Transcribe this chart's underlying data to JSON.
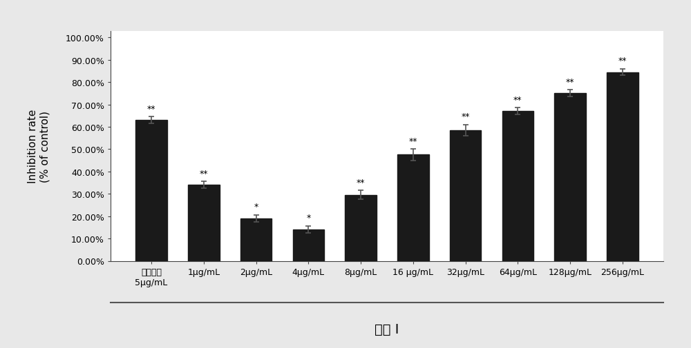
{
  "categories": [
    "阿瓦斯汀\n5μg/mL",
    "1μg/mL",
    "2μg/mL",
    "4μg/mL",
    "8μg/mL",
    "16 μg/mL",
    "32μg/mL",
    "64μg/mL",
    "128μg/mL",
    "256μg/mL"
  ],
  "values": [
    63.0,
    34.0,
    19.0,
    14.0,
    29.5,
    47.5,
    58.5,
    67.0,
    75.0,
    84.5
  ],
  "errors": [
    1.5,
    1.5,
    1.5,
    1.5,
    2.0,
    2.5,
    2.5,
    1.5,
    1.5,
    1.5
  ],
  "significance": [
    "**",
    "**",
    "*",
    "*",
    "**",
    "**",
    "**",
    "**",
    "**",
    "**"
  ],
  "bar_color": "#1a1a1a",
  "error_color": "#1a1a1a",
  "ylabel_line1": "Inhibition rate",
  "ylabel_line2": "(% of control)",
  "xlabel": "多肽 I",
  "ylim": [
    0,
    100
  ],
  "yticks": [
    0,
    10,
    20,
    30,
    40,
    50,
    60,
    70,
    80,
    90,
    100
  ],
  "ytick_labels": [
    "0.00%",
    "10.00%",
    "20.00%",
    "30.00%",
    "40.00%",
    "50.00%",
    "60.00%",
    "70.00%",
    "80.00%",
    "90.00%",
    "100.00%"
  ],
  "background_color": "#ffffff",
  "outer_bg": "#e8e8e8",
  "bar_width": 0.6,
  "figsize": [
    10,
    5.06
  ],
  "dpi": 100,
  "label_fontsize": 11,
  "tick_fontsize": 9,
  "sig_fontsize": 9,
  "xlabel_fontsize": 14
}
